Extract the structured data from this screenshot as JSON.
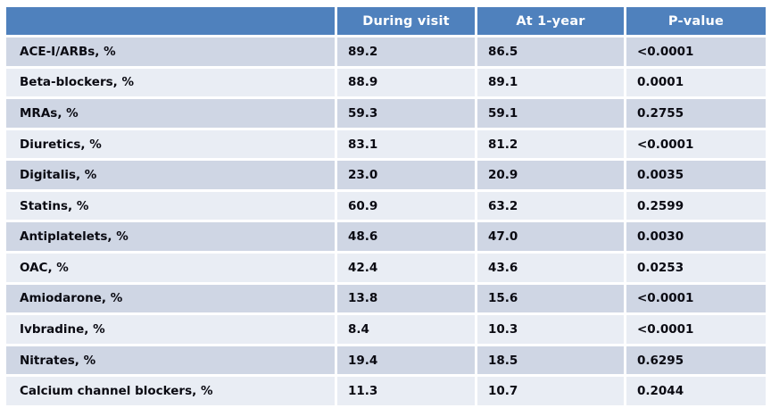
{
  "chart_data": {
    "type": "table",
    "columns": [
      "",
      "During visit",
      "At 1-year",
      "P-value"
    ],
    "rows": [
      [
        "ACE-I/ARBs, %",
        "89.2",
        "86.5",
        "<0.0001"
      ],
      [
        "Beta-blockers, %",
        "88.9",
        "89.1",
        "0.0001"
      ],
      [
        "MRAs, %",
        "59.3",
        "59.1",
        "0.2755"
      ],
      [
        "Diuretics, %",
        "83.1",
        "81.2",
        "<0.0001"
      ],
      [
        "Digitalis, %",
        "23.0",
        "20.9",
        "0.0035"
      ],
      [
        "Statins, %",
        "60.9",
        "63.2",
        "0.2599"
      ],
      [
        "Antiplatelets, %",
        "48.6",
        "47.0",
        "0.0030"
      ],
      [
        "OAC, %",
        "42.4",
        "43.6",
        "0.0253"
      ],
      [
        "Amiodarone, %",
        "13.8",
        "15.6",
        "<0.0001"
      ],
      [
        "Ivbradine, %",
        "8.4",
        "10.3",
        "<0.0001"
      ],
      [
        "Nitrates, %",
        "19.4",
        "18.5",
        "0.6295"
      ],
      [
        "Calcium channel blockers, %",
        "11.3",
        "10.7",
        "0.2044"
      ]
    ]
  },
  "colors": {
    "page_bg": "#FFFFFF",
    "header_bg": "#4F81BD",
    "header_text": "#FFFFFF",
    "row_odd_bg": "#CFD6E4",
    "row_even_bg": "#E9EDF4",
    "body_text": "#0A0A12"
  }
}
